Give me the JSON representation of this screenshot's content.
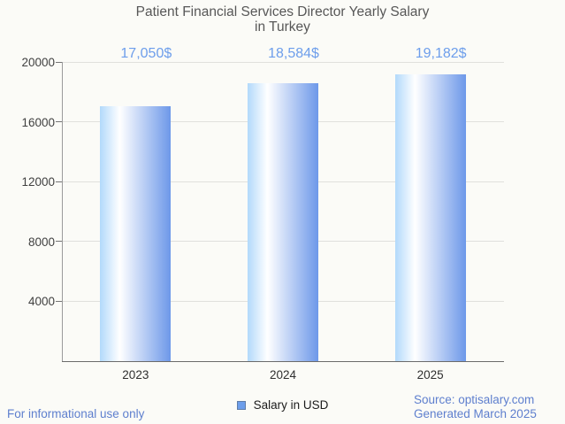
{
  "title": {
    "line1": "Patient Financial Services Director Yearly Salary",
    "line2": "in Turkey"
  },
  "chart_data": {
    "type": "bar",
    "categories": [
      "2023",
      "2024",
      "2025"
    ],
    "series": [
      {
        "name": "Salary in USD",
        "values": [
          17050,
          18584,
          19182
        ]
      }
    ],
    "value_labels": [
      "17,050$",
      "18,584$",
      "19,182$"
    ],
    "title": "Patient Financial Services Director Yearly Salary in Turkey",
    "xlabel": "",
    "ylabel": "",
    "ylim": [
      0,
      20000
    ],
    "yticks": [
      4000,
      8000,
      12000,
      16000,
      20000
    ],
    "ytick_labels": [
      "4000",
      "8000",
      "12000",
      "16000",
      "20000"
    ],
    "grid": true,
    "legend_position": "bottom"
  },
  "legend": {
    "label": "Salary in USD"
  },
  "footer": {
    "left": "For informational use only",
    "source": "Source: optisalary.com",
    "generated": "Generated March 2025"
  },
  "colors": {
    "accent_blue": "#6d9eeb",
    "footer_blue": "#5e7fce",
    "bar_gradient_left": "#b2d9fb",
    "bar_gradient_mid": "#ffffff",
    "bar_gradient_right": "#6d98e9",
    "title_text": "#575757",
    "axis_text": "#404040",
    "gridline": "#e0e0dd",
    "background": "#fbfbf7"
  }
}
